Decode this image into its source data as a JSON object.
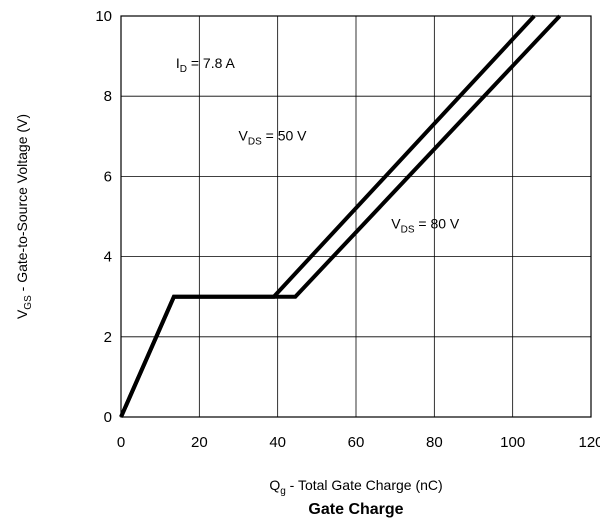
{
  "chart_data": {
    "type": "line",
    "caption": "Gate Charge",
    "xlabel": {
      "main": "Q",
      "sub": "g",
      "rest": " - Total Gate Charge (nC)"
    },
    "ylabel": {
      "main": "V",
      "sub": "GS",
      "rest": " - Gate-to-Source Voltage (V)"
    },
    "xlim": [
      0,
      120
    ],
    "ylim": [
      0,
      10
    ],
    "xticks": [
      0,
      20,
      40,
      60,
      80,
      100,
      120
    ],
    "yticks": [
      0,
      2,
      4,
      6,
      8,
      10
    ],
    "grid": true,
    "series": [
      {
        "name": "VDS = 50 V",
        "x": [
          0,
          13.5,
          39,
          105.5
        ],
        "y": [
          0,
          3,
          3,
          10
        ]
      },
      {
        "name": "VDS = 80 V",
        "x": [
          0,
          13.5,
          44.5,
          112
        ],
        "y": [
          0,
          3,
          3,
          10
        ]
      }
    ],
    "annotations": [
      {
        "main": "I",
        "sub": "D",
        "rest": " = 7.8 A",
        "at": [
          14,
          8.7
        ]
      },
      {
        "main": "V",
        "sub": "DS",
        "rest": " = 50 V",
        "at": [
          30,
          6.9
        ]
      },
      {
        "main": "V",
        "sub": "DS",
        "rest": " = 80 V",
        "at": [
          69,
          4.7
        ]
      }
    ]
  }
}
